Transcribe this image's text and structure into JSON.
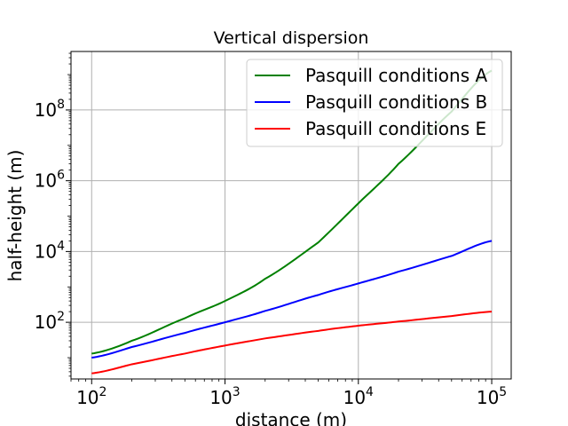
{
  "chart_data": {
    "type": "line",
    "title": "Vertical dispersion",
    "xlabel": "distance (m)",
    "ylabel": "half-height (m)",
    "xscale": "log",
    "yscale": "log",
    "xlim": [
      70,
      140000
    ],
    "ylim": [
      2.5,
      4500000000.0
    ],
    "grid": true,
    "legend_position": "top-right",
    "x_ticks": [
      {
        "base": "10",
        "exp": "2",
        "value": 100
      },
      {
        "base": "10",
        "exp": "3",
        "value": 1000
      },
      {
        "base": "10",
        "exp": "4",
        "value": 10000
      },
      {
        "base": "10",
        "exp": "5",
        "value": 100000
      }
    ],
    "y_ticks": [
      {
        "base": "10",
        "exp": "2",
        "value": 100
      },
      {
        "base": "10",
        "exp": "4",
        "value": 10000
      },
      {
        "base": "10",
        "exp": "6",
        "value": 1000000
      },
      {
        "base": "10",
        "exp": "8",
        "value": 100000000
      }
    ],
    "x": [
      100,
      200,
      500,
      1000,
      2000,
      5000,
      10000,
      20000,
      50000,
      100000
    ],
    "series": [
      {
        "name": "Pasquill conditions A",
        "color": "#008000",
        "values": [
          13,
          30,
          130,
          400,
          1700,
          18000,
          230000,
          3000000,
          90000000,
          1300000000
        ]
      },
      {
        "name": "Pasquill conditions B",
        "color": "#0000ff",
        "values": [
          10,
          20,
          50,
          100,
          210,
          590,
          1250,
          2700,
          7500,
          20000
        ]
      },
      {
        "name": "Pasquill conditions E",
        "color": "#ff0000",
        "values": [
          3.6,
          6.5,
          13,
          22,
          35,
          57,
          80,
          105,
          150,
          200
        ]
      }
    ]
  }
}
